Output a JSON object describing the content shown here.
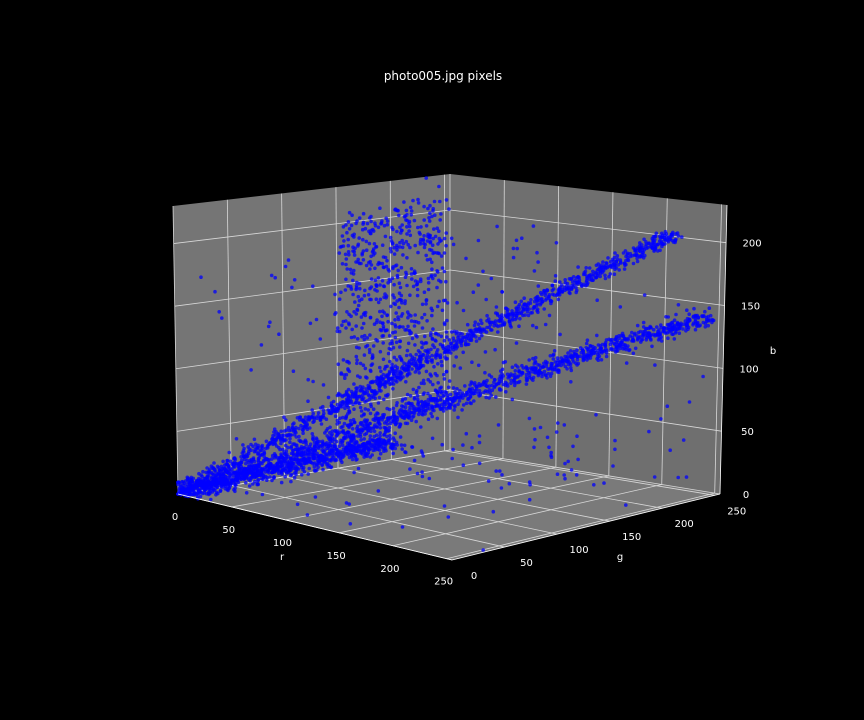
{
  "chart_data": {
    "type": "scatter",
    "title": "photo005.jpg pixels",
    "xlabel": "r",
    "ylabel": "g",
    "zlabel": "b",
    "xticks": [
      "0",
      "50",
      "100",
      "150",
      "200",
      "250"
    ],
    "yticks": [
      "0",
      "50",
      "100",
      "150",
      "200",
      "250"
    ],
    "zticks": [
      "0",
      "50",
      "100",
      "150",
      "200"
    ],
    "xlim": [
      0,
      255
    ],
    "ylim": [
      0,
      255
    ],
    "zlim": [
      0,
      230
    ],
    "projection": "3d",
    "grid": true,
    "marker_color": "#0000ff",
    "pane_color": "#737373",
    "background": "#000000",
    "clusters": [
      {
        "r": [
          0,
          40
        ],
        "g": [
          140,
          250
        ],
        "b": [
          10,
          200
        ],
        "density": "high",
        "shape": "plane-upper"
      },
      {
        "r": [
          0,
          250
        ],
        "g": [
          0,
          250
        ],
        "b": [
          0,
          230
        ],
        "density": "high",
        "shape": "diagonal-band-r=g=b"
      },
      {
        "r": [
          0,
          255
        ],
        "g": [
          0,
          255
        ],
        "b": [
          0,
          170
        ],
        "density": "high",
        "shape": "lower-band"
      },
      {
        "r": [
          0,
          60
        ],
        "g": [
          0,
          250
        ],
        "b": [
          0,
          40
        ],
        "density": "high",
        "shape": "floor-cluster"
      }
    ]
  }
}
